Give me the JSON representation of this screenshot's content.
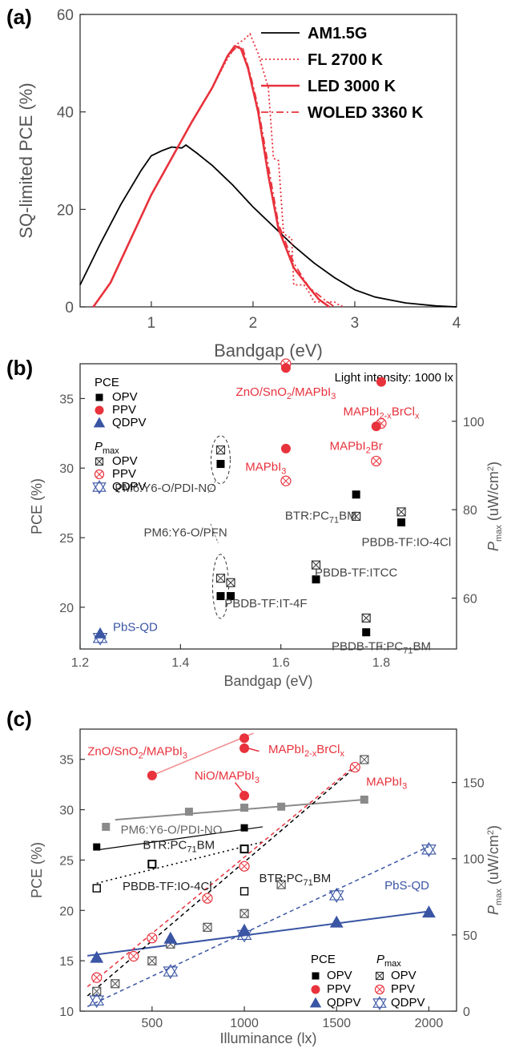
{
  "colors": {
    "black": "#000000",
    "red": "#e8323c",
    "blue": "#3a55a4",
    "gray": "#8a8a8a",
    "pink": "#f08a8a"
  },
  "chart_data": [
    {
      "panel": "(a)",
      "type": "line",
      "xlabel": "Bandgap (eV)",
      "ylabel": "SQ-limited PCE (%)",
      "xlim": [
        0.3,
        4.0
      ],
      "ylim": [
        0,
        60
      ],
      "xticks": [
        "1",
        "2",
        "3",
        "4"
      ],
      "yticks": [
        "0",
        "20",
        "40",
        "60"
      ],
      "series": [
        {
          "name": "AM1.5G",
          "color": "#000000",
          "style": "solid",
          "x": [
            0.3,
            0.5,
            0.7,
            0.9,
            1.0,
            1.1,
            1.2,
            1.3,
            1.34,
            1.45,
            1.6,
            1.8,
            2.0,
            2.2,
            2.4,
            2.6,
            2.8,
            3.0,
            3.2,
            3.5,
            3.8,
            4.0
          ],
          "y": [
            4.5,
            13,
            21,
            28,
            31,
            32,
            32.8,
            32.6,
            33.2,
            31.5,
            29,
            25,
            20.5,
            16.5,
            12.5,
            9,
            6,
            3.5,
            2,
            0.8,
            0.2,
            0
          ]
        },
        {
          "name": "FL 2700 K",
          "color": "#e8323c",
          "style": "dotted",
          "x": [
            0.43,
            0.6,
            0.8,
            1.0,
            1.2,
            1.4,
            1.6,
            1.75,
            1.85,
            1.92,
            1.97,
            2.05,
            2.15,
            2.2,
            2.25,
            2.3,
            2.38,
            2.4,
            2.5,
            2.55,
            2.6,
            2.8,
            2.85,
            2.9
          ],
          "y": [
            0,
            5,
            14,
            23,
            30.5,
            38,
            45,
            51,
            54,
            55,
            56,
            52,
            45,
            30.5,
            30,
            15,
            14,
            4.5,
            4.5,
            3,
            1,
            1,
            0.3,
            0
          ]
        },
        {
          "name": "LED 3000 K",
          "color": "#e8323c",
          "style": "solid",
          "x": [
            0.43,
            0.6,
            0.8,
            1.0,
            1.2,
            1.4,
            1.6,
            1.75,
            1.82,
            1.88,
            1.95,
            2.05,
            2.15,
            2.25,
            2.4,
            2.55,
            2.65,
            2.75
          ],
          "y": [
            0,
            5,
            14,
            23,
            30.5,
            38,
            45,
            51.5,
            53.5,
            53,
            49,
            40,
            27,
            16,
            8,
            4,
            1.5,
            0
          ]
        },
        {
          "name": "WOLED 3360 K",
          "color": "#e8323c",
          "style": "dashdot",
          "x": [
            0.43,
            0.6,
            0.8,
            1.0,
            1.2,
            1.4,
            1.6,
            1.75,
            1.85,
            1.9,
            1.97,
            2.05,
            2.15,
            2.25,
            2.4,
            2.55,
            2.7,
            2.8
          ],
          "y": [
            0,
            5,
            14,
            23,
            30.5,
            38,
            45,
            51.5,
            53.5,
            53,
            48,
            41,
            29,
            17,
            9,
            4,
            1.5,
            0
          ]
        }
      ],
      "legend_position": "top-right"
    },
    {
      "panel": "(b)",
      "type": "scatter",
      "xlabel": "Bandgap (eV)",
      "ylabel": "PCE (%)",
      "y2label_main": "P",
      "y2label_sub": "max",
      "y2label_tail": " (uW/cm",
      "y2label_sup": "2",
      "y2label_end": ")",
      "xlim": [
        1.2,
        1.95
      ],
      "ylim": [
        17,
        37.5
      ],
      "y2lim": [
        48.5,
        113
      ],
      "xticks": [
        "1.2",
        "1.4",
        "1.6",
        "1.8"
      ],
      "yticks": [
        "20",
        "25",
        "30",
        "35"
      ],
      "y2ticks": [
        "60",
        "80",
        "100"
      ],
      "light_intensity": "Light intensity: 1000 lx",
      "legend": {
        "pce_title": "PCE",
        "pmax_title_main": "P",
        "pmax_title_sub": "max",
        "entries": [
          "OPV",
          "PPV",
          "QDPV"
        ]
      },
      "pce": {
        "OPV": [
          [
            1.48,
            30.3
          ],
          [
            1.75,
            28.1
          ],
          [
            1.84,
            26.1
          ],
          [
            1.67,
            22.0
          ],
          [
            1.48,
            20.8
          ],
          [
            1.5,
            20.8
          ],
          [
            1.77,
            18.2
          ]
        ],
        "PPV": [
          [
            1.61,
            37.2
          ],
          [
            1.8,
            36.2
          ],
          [
            1.79,
            33.0
          ],
          [
            1.61,
            31.4
          ]
        ],
        "QDPV": [
          [
            1.24,
            18.1
          ]
        ]
      },
      "pmax": {
        "OPV": [
          [
            1.48,
            93.5
          ],
          [
            1.75,
            78.5
          ],
          [
            1.84,
            79.5
          ],
          [
            1.67,
            67.5
          ],
          [
            1.48,
            64.5
          ],
          [
            1.5,
            63.5
          ],
          [
            1.77,
            55.5
          ]
        ],
        "PPV": [
          [
            1.61,
            113
          ],
          [
            1.8,
            99.5
          ],
          [
            1.79,
            91
          ],
          [
            1.61,
            86.5
          ]
        ],
        "QDPV": [
          [
            1.24,
            51
          ]
        ]
      },
      "labels": [
        {
          "text": "ZnO/SnO",
          "sub": "2",
          "tail": "/MAPbI",
          "sub2": "3",
          "x": 1.61,
          "y": 35.2,
          "color": "#e8323c"
        },
        {
          "text": "MAPbI",
          "sub": "2-x",
          "tail": "BrCl",
          "sub2": "x",
          "x": 1.8,
          "y": 33.8,
          "color": "#e8323c"
        },
        {
          "text": "MAPbI",
          "sub": "2",
          "tail": "Br",
          "sub2": "",
          "x": 1.75,
          "y": 31.3,
          "color": "#e8323c"
        },
        {
          "text": "MAPbI",
          "sub": "3",
          "tail": "",
          "sub2": "",
          "x": 1.57,
          "y": 29.8,
          "color": "#e8323c"
        },
        {
          "text": "PM6:Y6-O/PDI-NO",
          "sub": "",
          "tail": "",
          "sub2": "",
          "x": 1.37,
          "y": 28.3,
          "color": "#444444"
        },
        {
          "text": "BTR:PC",
          "sub": "71",
          "tail": "BM",
          "sub2": "",
          "x": 1.68,
          "y": 26.3,
          "color": "#444444"
        },
        {
          "text": "PBDB-TF:IO-4Cl",
          "sub": "",
          "tail": "",
          "sub2": "",
          "x": 1.85,
          "y": 24.4,
          "color": "#444444"
        },
        {
          "text": "PM6:Y6-O/PFN",
          "sub": "",
          "tail": "",
          "sub2": "",
          "x": 1.41,
          "y": 25.1,
          "color": "#444444"
        },
        {
          "text": "PBDB-TF:ITCC",
          "sub": "",
          "tail": "",
          "sub2": "",
          "x": 1.75,
          "y": 22.2,
          "color": "#444444"
        },
        {
          "text": "PBDB-TF:IT-4F",
          "sub": "",
          "tail": "",
          "sub2": "",
          "x": 1.57,
          "y": 20.0,
          "color": "#444444"
        },
        {
          "text": "PbS-QD",
          "sub": "",
          "tail": "",
          "sub2": "",
          "x": 1.31,
          "y": 18.3,
          "color": "#3a55a4"
        },
        {
          "text": "PBDB-TF:PC",
          "sub": "71",
          "tail": "BM",
          "sub2": "",
          "x": 1.8,
          "y": 16.9,
          "color": "#444444"
        }
      ]
    },
    {
      "panel": "(c)",
      "type": "scatter",
      "xlabel": "Illuminance (lx)",
      "ylabel": "PCE (%)",
      "y2label_main": "P",
      "y2label_sub": "max",
      "y2label_tail": " (uW/cm",
      "y2label_sup": "2",
      "y2label_end": ")",
      "xlim": [
        110,
        2150
      ],
      "ylim": [
        10,
        38
      ],
      "y2lim": [
        0,
        185
      ],
      "xticks": [
        "500",
        "1000",
        "1500",
        "2000"
      ],
      "yticks": [
        "10",
        "15",
        "20",
        "25",
        "30",
        "35"
      ],
      "y2ticks": [
        "0",
        "50",
        "100",
        "150"
      ],
      "legend": {
        "pce_title": "PCE",
        "pmax_title_main": "P",
        "pmax_title_sub": "max",
        "entries": [
          "OPV",
          "PPV",
          "QDPV"
        ]
      },
      "pce": {
        "OPV_pdi": [
          [
            200,
            26.3
          ],
          [
            1000,
            28.2
          ]
        ],
        "OPV_btr": [
          [
            500,
            24.6
          ],
          [
            1000,
            26.1
          ]
        ],
        "OPV_io": [
          [
            200,
            22.2
          ],
          [
            1000,
            21.9
          ]
        ],
        "PDI_gray": [
          [
            250,
            28.3
          ],
          [
            700,
            29.8
          ],
          [
            1000,
            30.2
          ],
          [
            1200,
            30.3
          ],
          [
            1650,
            31.0
          ]
        ],
        "PPV": [
          [
            500,
            33.4
          ],
          [
            1000,
            37.1
          ],
          [
            1000,
            36.1
          ],
          [
            1000,
            31.4
          ]
        ],
        "QDPV": [
          [
            200,
            15.3
          ],
          [
            600,
            17.2
          ],
          [
            1000,
            18.0
          ],
          [
            1500,
            18.8
          ],
          [
            2000,
            19.8
          ]
        ]
      },
      "pmax": {
        "OPV": [
          [
            200,
            13
          ],
          [
            300,
            18
          ],
          [
            500,
            33
          ],
          [
            600,
            44
          ],
          [
            800,
            55
          ],
          [
            1000,
            64
          ],
          [
            1200,
            83
          ],
          [
            1650,
            165
          ]
        ],
        "PPV": [
          [
            200,
            22
          ],
          [
            400,
            36
          ],
          [
            500,
            48
          ],
          [
            800,
            74
          ],
          [
            1000,
            95
          ],
          [
            1600,
            160
          ]
        ],
        "QDPV": [
          [
            200,
            7
          ],
          [
            600,
            26
          ],
          [
            1000,
            50
          ],
          [
            1500,
            76
          ],
          [
            2000,
            106
          ]
        ]
      },
      "labels": [
        {
          "text": "ZnO/SnO",
          "sub": "2",
          "tail": "/MAPbI",
          "sub2": "3",
          "x": 150,
          "y": 35.4,
          "color": "#e8323c"
        },
        {
          "text": "MAPbI",
          "sub": "2-x",
          "tail": "BrCl",
          "sub2": "x",
          "x": 1130,
          "y": 35.6,
          "color": "#e8323c"
        },
        {
          "text": "NiO/MAPbI",
          "sub": "3",
          "tail": "",
          "sub2": "",
          "x": 730,
          "y": 33.0,
          "color": "#e8323c"
        },
        {
          "text": "MAPbI",
          "sub": "3",
          "tail": "",
          "sub2": "",
          "x": 1660,
          "y": 32.4,
          "color": "#e8323c"
        },
        {
          "text": "PM6:Y6-O/PDI-NO",
          "sub": "",
          "tail": "",
          "sub2": "",
          "x": 330,
          "y": 27.6,
          "color": "#666666"
        },
        {
          "text": "BTR:PC",
          "sub": "71",
          "tail": "BM",
          "sub2": "",
          "x": 450,
          "y": 26.1,
          "color": "#222222"
        },
        {
          "text": "PBDB-TF:IO-4Cl",
          "sub": "",
          "tail": "",
          "sub2": "",
          "x": 340,
          "y": 22.0,
          "color": "#222222"
        },
        {
          "text": "BTR:PC",
          "sub": "71",
          "tail": "BM",
          "sub2": "",
          "x": 1080,
          "y": 22.8,
          "color": "#222222"
        },
        {
          "text": "PbS-QD",
          "sub": "",
          "tail": "",
          "sub2": "",
          "x": 1760,
          "y": 22.1,
          "color": "#3a55a4"
        }
      ]
    }
  ]
}
